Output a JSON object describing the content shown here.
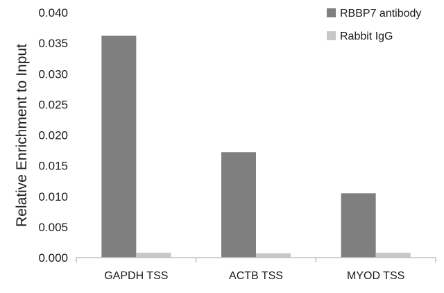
{
  "chart_data": {
    "type": "bar",
    "ylabel": "Relative Enrichment to Input",
    "xlabel": "",
    "categories": [
      "GAPDH TSS",
      "ACTB TSS",
      "MYOD TSS"
    ],
    "series": [
      {
        "name": "RBBP7 antibody",
        "color": "#7f7f7f",
        "values": [
          0.0362,
          0.0172,
          0.0105
        ]
      },
      {
        "name": "Rabbit IgG",
        "color": "#c8c8c8",
        "values": [
          0.0008,
          0.0007,
          0.0008
        ]
      }
    ],
    "ylim": [
      0,
      0.04
    ],
    "yticks": [
      "0.000",
      "0.005",
      "0.010",
      "0.015",
      "0.020",
      "0.025",
      "0.030",
      "0.035",
      "0.040"
    ],
    "grid": false,
    "legend": "top-right"
  }
}
